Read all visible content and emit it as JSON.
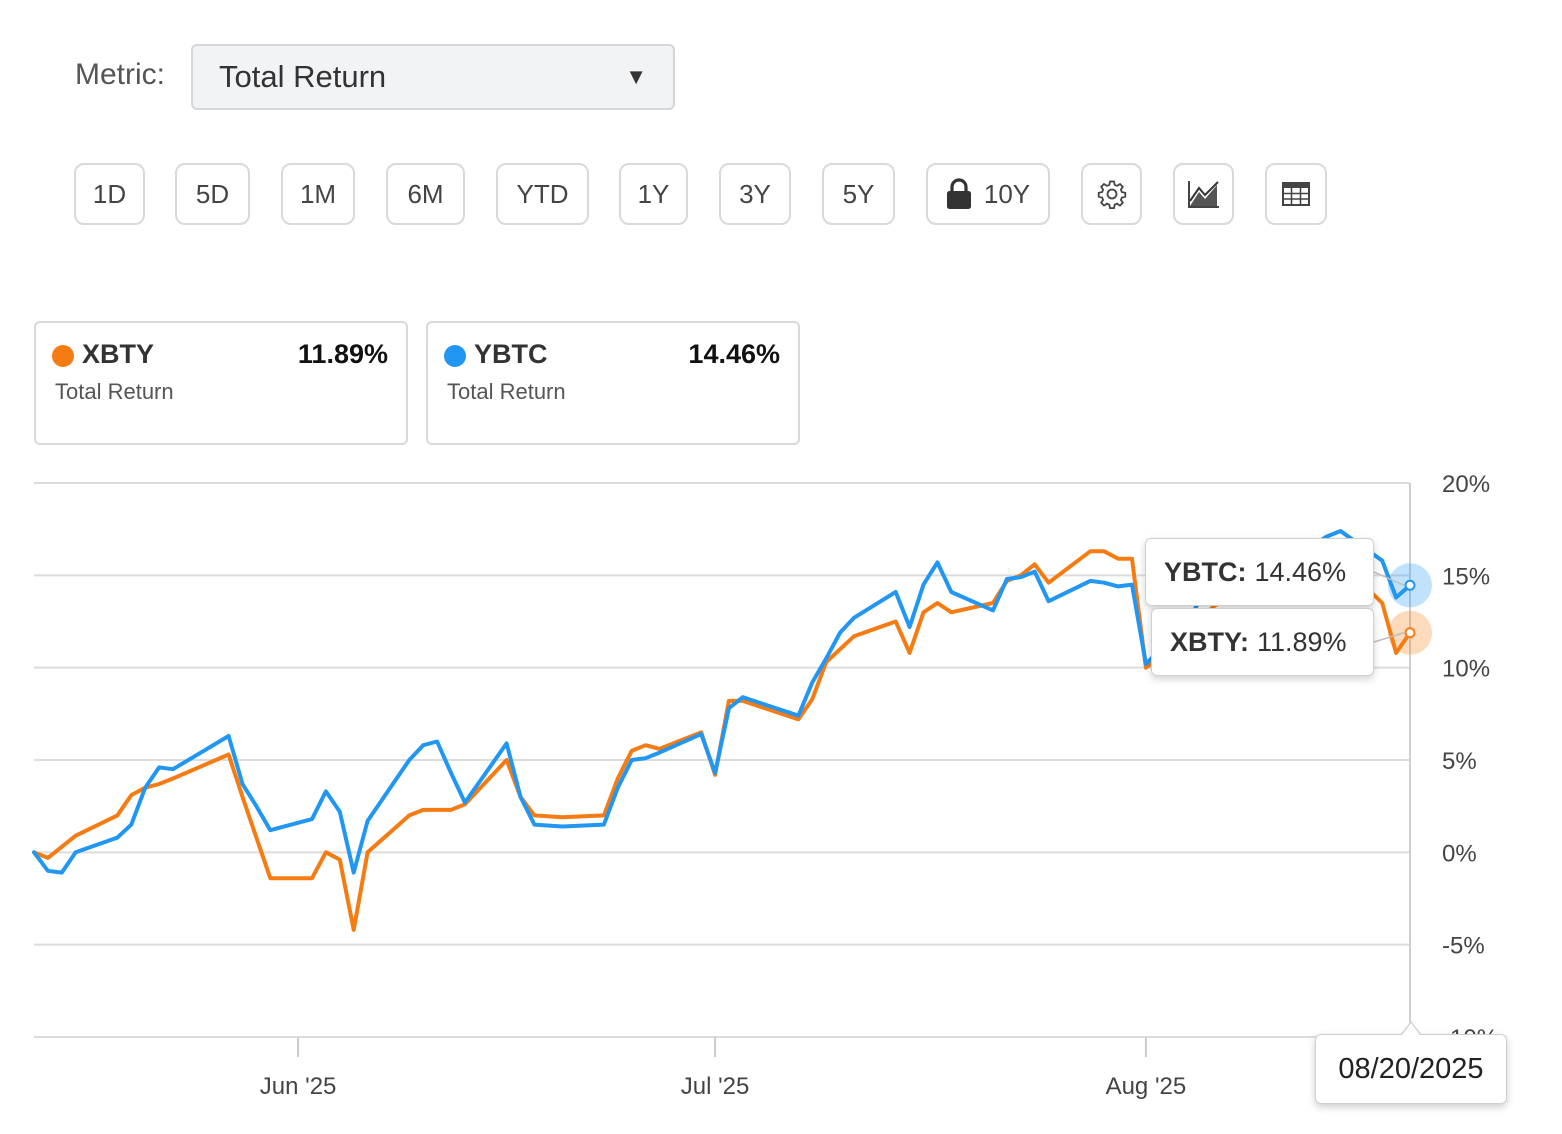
{
  "metric": {
    "label": "Metric:",
    "selected": "Total Return",
    "caret": "▼"
  },
  "ranges": [
    {
      "label": "1D"
    },
    {
      "label": "5D"
    },
    {
      "label": "1M"
    },
    {
      "label": "6M"
    },
    {
      "label": "YTD"
    },
    {
      "label": "1Y"
    },
    {
      "label": "3Y"
    },
    {
      "label": "5Y"
    },
    {
      "label": "10Y",
      "locked": true
    }
  ],
  "tools": [
    {
      "icon": "gear-icon"
    },
    {
      "icon": "mountain-chart-icon"
    },
    {
      "icon": "table-icon"
    }
  ],
  "cards": [
    {
      "ticker": "XBTY",
      "value": "11.89%",
      "subtitle": "Total Return",
      "color": "#f57c12"
    },
    {
      "ticker": "YBTC",
      "value": "14.46%",
      "subtitle": "Total Return",
      "color": "#2196f3"
    }
  ],
  "tooltips": {
    "ybtc": {
      "name": "YBTC:",
      "value": "14.46%"
    },
    "xbty": {
      "name": "XBTY:",
      "value": "11.89%"
    },
    "date": "08/20/2025"
  },
  "chart_data": {
    "type": "line",
    "ylim": [
      -10,
      20
    ],
    "yticks": [
      {
        "v": 20,
        "label": "20%"
      },
      {
        "v": 15,
        "label": "15%"
      },
      {
        "v": 10,
        "label": "10%"
      },
      {
        "v": 5,
        "label": "5%"
      },
      {
        "v": 0,
        "label": "0%"
      },
      {
        "v": -5,
        "label": "-5%"
      },
      {
        "v": -10,
        "label": "-10%"
      }
    ],
    "xlim": [
      "2025-05-13",
      "2025-08-20"
    ],
    "xticks": [
      {
        "date": "2025-06-01",
        "label": "Jun '25"
      },
      {
        "date": "2025-07-01",
        "label": "Jul '25"
      },
      {
        "date": "2025-08-01",
        "label": "Aug '25"
      }
    ],
    "x": [
      "2025-05-13",
      "2025-05-14",
      "2025-05-15",
      "2025-05-16",
      "2025-05-19",
      "2025-05-20",
      "2025-05-21",
      "2025-05-22",
      "2025-05-23",
      "2025-05-27",
      "2025-05-28",
      "2025-05-29",
      "2025-05-30",
      "2025-06-02",
      "2025-06-03",
      "2025-06-04",
      "2025-06-05",
      "2025-06-06",
      "2025-06-09",
      "2025-06-10",
      "2025-06-11",
      "2025-06-12",
      "2025-06-13",
      "2025-06-16",
      "2025-06-17",
      "2025-06-18",
      "2025-06-20",
      "2025-06-23",
      "2025-06-24",
      "2025-06-25",
      "2025-06-26",
      "2025-06-27",
      "2025-06-30",
      "2025-07-01",
      "2025-07-02",
      "2025-07-03",
      "2025-07-07",
      "2025-07-08",
      "2025-07-09",
      "2025-07-10",
      "2025-07-11",
      "2025-07-14",
      "2025-07-15",
      "2025-07-16",
      "2025-07-17",
      "2025-07-18",
      "2025-07-21",
      "2025-07-22",
      "2025-07-23",
      "2025-07-24",
      "2025-07-25",
      "2025-07-28",
      "2025-07-29",
      "2025-07-30",
      "2025-07-31",
      "2025-08-01",
      "2025-08-04",
      "2025-08-05",
      "2025-08-06",
      "2025-08-07",
      "2025-08-08",
      "2025-08-11",
      "2025-08-12",
      "2025-08-13",
      "2025-08-14",
      "2025-08-15",
      "2025-08-18",
      "2025-08-19",
      "2025-08-20"
    ],
    "series": [
      {
        "name": "XBTY",
        "color": "#f57c12",
        "values": [
          0,
          -0.3,
          0.3,
          0.9,
          2.0,
          3.1,
          3.5,
          3.7,
          4.0,
          5.3,
          3.0,
          0.8,
          -1.4,
          -1.4,
          0.0,
          -0.4,
          -4.2,
          0.0,
          2.0,
          2.3,
          2.3,
          2.3,
          2.6,
          5.0,
          3.0,
          2.0,
          1.9,
          2.0,
          4.0,
          5.5,
          5.8,
          5.6,
          6.5,
          4.2,
          8.2,
          8.2,
          7.2,
          8.3,
          10.3,
          11.0,
          11.7,
          12.5,
          10.8,
          13.0,
          13.5,
          13.0,
          13.5,
          14.7,
          15.0,
          15.6,
          14.6,
          16.3,
          16.3,
          15.9,
          15.9,
          10.0,
          11.8,
          12.7,
          13.4,
          13.6,
          14.1,
          14.5,
          15.3,
          15.8,
          16.4,
          15.7,
          13.5,
          10.8,
          11.89
        ]
      },
      {
        "name": "YBTC",
        "color": "#2196f3",
        "values": [
          0,
          -1.0,
          -1.1,
          0.0,
          0.8,
          1.5,
          3.5,
          4.6,
          4.5,
          6.3,
          3.7,
          2.5,
          1.2,
          1.8,
          3.3,
          2.2,
          -1.1,
          1.7,
          5.0,
          5.8,
          6.0,
          4.3,
          2.7,
          5.9,
          3.0,
          1.5,
          1.4,
          1.5,
          3.5,
          5.0,
          5.1,
          5.4,
          6.4,
          4.3,
          7.8,
          8.4,
          7.4,
          9.2,
          10.5,
          11.9,
          12.7,
          14.1,
          12.2,
          14.5,
          15.7,
          14.1,
          13.1,
          14.8,
          14.9,
          15.2,
          13.6,
          14.7,
          14.6,
          14.4,
          14.5,
          10.2,
          12.5,
          13.8,
          14.3,
          14.8,
          15.2,
          15.6,
          16.0,
          16.6,
          17.1,
          17.4,
          15.8,
          13.8,
          14.46
        ]
      }
    ]
  }
}
